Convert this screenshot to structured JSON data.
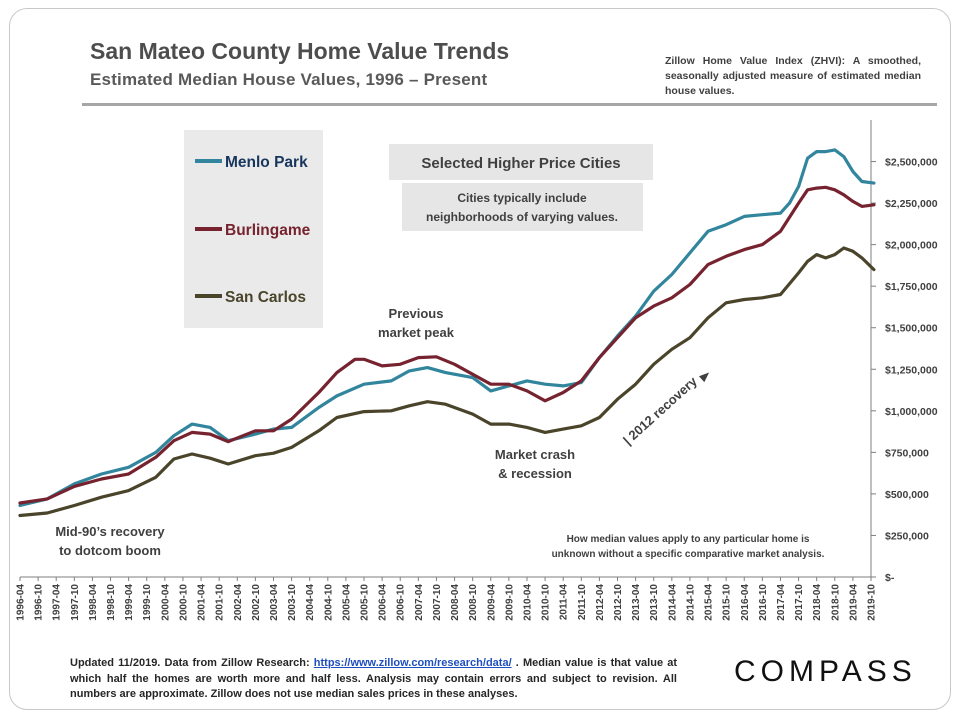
{
  "header": {
    "title": "San Mateo County Home Value Trends",
    "subtitle": "Estimated Median House Values, 1996 – Present",
    "zhvi_note": "Zillow Home Value Index (ZHVI): A smoothed, seasonally adjusted measure of estimated median house values."
  },
  "chart_data": {
    "type": "line",
    "title": "San Mateo County Home Value Trends",
    "subtitle": "Estimated Median House Values, 1996 – Present",
    "xlabel": "",
    "ylabel": "",
    "ylim": [
      0,
      2750000
    ],
    "y_axis_position": "right",
    "y_ticks": [
      0,
      250000,
      500000,
      750000,
      1000000,
      1250000,
      1500000,
      1750000,
      2000000,
      2250000,
      2500000
    ],
    "y_tick_labels": [
      "$-",
      "$250,000",
      "$500,000",
      "$750,000",
      "$1,000,000",
      "$1,250,000",
      "$1,500,000",
      "$1,750,000",
      "$2,000,000",
      "$2,250,000",
      "$2,500,000"
    ],
    "x_tick_labels": [
      "1996-04",
      "1996-10",
      "1997-04",
      "1997-10",
      "1998-04",
      "1998-10",
      "1999-04",
      "1999-10",
      "2000-04",
      "2000-10",
      "2001-04",
      "2001-10",
      "2002-04",
      "2002-10",
      "2003-04",
      "2003-10",
      "2004-04",
      "2004-10",
      "2005-04",
      "2005-10",
      "2006-04",
      "2006-10",
      "2007-04",
      "2007-10",
      "2008-04",
      "2008-10",
      "2009-04",
      "2009-10",
      "2010-04",
      "2010-10",
      "2011-04",
      "2011-10",
      "2012-04",
      "2012-10",
      "2013-04",
      "2013-10",
      "2014-04",
      "2014-10",
      "2015-04",
      "2015-10",
      "2016-04",
      "2016-10",
      "2017-04",
      "2017-10",
      "2018-04",
      "2018-10",
      "2019-04",
      "2019-10"
    ],
    "grid": false,
    "legend": "left",
    "series": [
      {
        "name": "Menlo Park",
        "color": "#31859c",
        "x": [
          1996.25,
          1997.0,
          1997.75,
          1998.5,
          1999.25,
          2000.0,
          2000.5,
          2001.0,
          2001.5,
          2002.0,
          2002.75,
          2003.25,
          2003.75,
          2004.5,
          2005.0,
          2005.75,
          2006.5,
          2007.0,
          2007.5,
          2008.0,
          2008.75,
          2009.25,
          2009.75,
          2010.25,
          2010.75,
          2011.25,
          2011.75,
          2012.25,
          2012.75,
          2013.25,
          2013.75,
          2014.25,
          2014.75,
          2015.25,
          2015.75,
          2016.25,
          2016.75,
          2017.25,
          2017.5,
          2017.75,
          2018.0,
          2018.25,
          2018.5,
          2018.75,
          2019.0,
          2019.25,
          2019.5,
          2019.83
        ],
        "values": [
          430000,
          470000,
          560000,
          620000,
          660000,
          750000,
          850000,
          920000,
          900000,
          820000,
          860000,
          890000,
          900000,
          1020000,
          1090000,
          1160000,
          1180000,
          1240000,
          1260000,
          1230000,
          1200000,
          1120000,
          1150000,
          1180000,
          1160000,
          1150000,
          1170000,
          1320000,
          1450000,
          1570000,
          1720000,
          1820000,
          1950000,
          2080000,
          2120000,
          2170000,
          2180000,
          2190000,
          2250000,
          2350000,
          2520000,
          2560000,
          2560000,
          2570000,
          2530000,
          2440000,
          2380000,
          2370000
        ]
      },
      {
        "name": "Burlingame",
        "color": "#76232f",
        "x": [
          1996.25,
          1997.0,
          1997.75,
          1998.5,
          1999.25,
          2000.0,
          2000.5,
          2001.0,
          2001.5,
          2002.0,
          2002.75,
          2003.25,
          2003.75,
          2004.5,
          2005.0,
          2005.5,
          2005.75,
          2006.25,
          2006.75,
          2007.25,
          2007.75,
          2008.25,
          2008.75,
          2009.25,
          2009.75,
          2010.25,
          2010.75,
          2011.25,
          2011.75,
          2012.25,
          2012.75,
          2013.25,
          2013.75,
          2014.25,
          2014.75,
          2015.25,
          2015.75,
          2016.25,
          2016.75,
          2017.25,
          2017.75,
          2018.0,
          2018.25,
          2018.5,
          2018.75,
          2019.0,
          2019.25,
          2019.5,
          2019.83
        ],
        "values": [
          445000,
          470000,
          545000,
          590000,
          620000,
          720000,
          820000,
          870000,
          860000,
          815000,
          880000,
          880000,
          950000,
          1110000,
          1230000,
          1310000,
          1310000,
          1270000,
          1280000,
          1320000,
          1325000,
          1280000,
          1220000,
          1160000,
          1160000,
          1120000,
          1060000,
          1110000,
          1180000,
          1320000,
          1440000,
          1560000,
          1630000,
          1680000,
          1760000,
          1880000,
          1930000,
          1970000,
          2000000,
          2080000,
          2250000,
          2330000,
          2340000,
          2345000,
          2330000,
          2300000,
          2260000,
          2230000,
          2240000
        ]
      },
      {
        "name": "San Carlos",
        "color": "#49442a",
        "x": [
          1996.25,
          1997.0,
          1997.75,
          1998.5,
          1999.25,
          2000.0,
          2000.5,
          2001.0,
          2001.5,
          2002.0,
          2002.75,
          2003.25,
          2003.75,
          2004.5,
          2005.0,
          2005.75,
          2006.5,
          2007.0,
          2007.5,
          2008.0,
          2008.75,
          2009.25,
          2009.75,
          2010.25,
          2010.75,
          2011.25,
          2011.75,
          2012.25,
          2012.75,
          2013.25,
          2013.75,
          2014.25,
          2014.75,
          2015.25,
          2015.75,
          2016.25,
          2016.75,
          2017.25,
          2017.75,
          2018.0,
          2018.25,
          2018.5,
          2018.75,
          2019.0,
          2019.25,
          2019.5,
          2019.83
        ],
        "values": [
          370000,
          385000,
          430000,
          480000,
          520000,
          600000,
          710000,
          740000,
          715000,
          680000,
          730000,
          745000,
          780000,
          880000,
          960000,
          995000,
          1000000,
          1030000,
          1055000,
          1040000,
          980000,
          920000,
          920000,
          900000,
          870000,
          890000,
          910000,
          960000,
          1070000,
          1160000,
          1280000,
          1370000,
          1440000,
          1560000,
          1650000,
          1670000,
          1680000,
          1700000,
          1830000,
          1900000,
          1940000,
          1920000,
          1940000,
          1980000,
          1960000,
          1920000,
          1850000
        ]
      }
    ],
    "annotations": [
      "Selected Higher Price Cities",
      "Cities typically include neighborhoods of varying values.",
      "Previous market peak",
      "Market crash & recession",
      "| 2012 recovery",
      "Mid-90's recovery to dotcom boom",
      "How median values apply to any particular home is unknown without a specific comparative market analysis."
    ]
  },
  "annotations": {
    "selected_cities": "Selected Higher Price Cities",
    "cities_note_1": "Cities typically include",
    "cities_note_2": "neighborhoods of varying values.",
    "prev_peak_1": "Previous",
    "prev_peak_2": "market peak",
    "crash_1": "Market crash",
    "crash_2": "& recession",
    "recovery_2012": "| 2012 recovery",
    "mid90s_1": "Mid-90’s recovery",
    "mid90s_2": "to dotcom boom",
    "median_note_1": "How median values apply to any particular home is",
    "median_note_2": "unknown without a specific comparative market analysis."
  },
  "footer": {
    "updated": "Updated 11/2019.",
    "data_from": " Data from Zillow Research: ",
    "link": "https://www.zillow.com/research/data/",
    "rest": " . Median value is that value at which half the homes are worth more and half less. Analysis may contain errors and subject to revision. All numbers are approximate. Zillow does not use median sales prices in these analyses.",
    "brand": "COMPASS"
  }
}
